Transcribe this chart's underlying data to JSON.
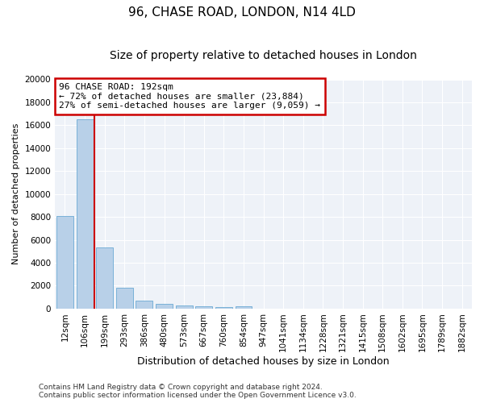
{
  "title": "96, CHASE ROAD, LONDON, N14 4LD",
  "subtitle": "Size of property relative to detached houses in London",
  "xlabel": "Distribution of detached houses by size in London",
  "ylabel": "Number of detached properties",
  "categories": [
    "12sqm",
    "106sqm",
    "199sqm",
    "293sqm",
    "386sqm",
    "480sqm",
    "573sqm",
    "667sqm",
    "760sqm",
    "854sqm",
    "947sqm",
    "1041sqm",
    "1134sqm",
    "1228sqm",
    "1321sqm",
    "1415sqm",
    "1508sqm",
    "1602sqm",
    "1695sqm",
    "1789sqm",
    "1882sqm"
  ],
  "values": [
    8100,
    16500,
    5300,
    1850,
    700,
    380,
    270,
    220,
    150,
    220,
    0,
    0,
    0,
    0,
    0,
    0,
    0,
    0,
    0,
    0,
    0
  ],
  "bar_color": "#b8d0e8",
  "bar_edge_color": "#6aaad4",
  "property_line_x": 1.5,
  "property_line_color": "#cc0000",
  "annotation_line1": "96 CHASE ROAD: 192sqm",
  "annotation_line2": "← 72% of detached houses are smaller (23,884)",
  "annotation_line3": "27% of semi-detached houses are larger (9,059) →",
  "annotation_box_color": "#cc0000",
  "ylim": [
    0,
    20000
  ],
  "yticks": [
    0,
    2000,
    4000,
    6000,
    8000,
    10000,
    12000,
    14000,
    16000,
    18000,
    20000
  ],
  "background_color": "#eef2f8",
  "grid_color": "#ffffff",
  "footnote_line1": "Contains HM Land Registry data © Crown copyright and database right 2024.",
  "footnote_line2": "Contains public sector information licensed under the Open Government Licence v3.0.",
  "title_fontsize": 11,
  "subtitle_fontsize": 10,
  "xlabel_fontsize": 9,
  "ylabel_fontsize": 8,
  "tick_fontsize": 7.5,
  "annotation_fontsize": 8,
  "footnote_fontsize": 6.5
}
